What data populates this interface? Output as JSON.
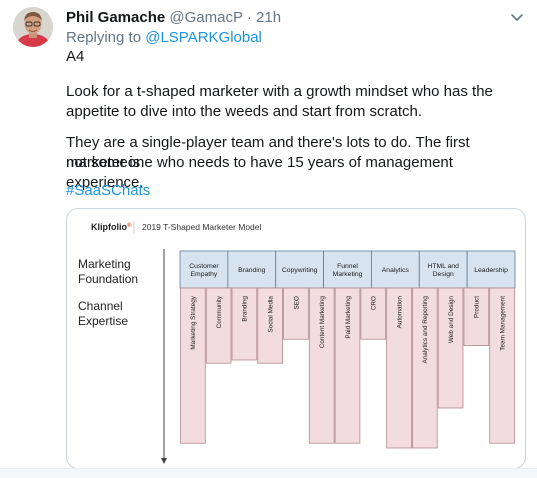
{
  "tweet": {
    "author_name": "Phil Gamache",
    "handle": "@GamacP",
    "separator": " · ",
    "time": "21h",
    "replying_prefix": "Replying to ",
    "replying_handle": "@LSPARKGlobal",
    "paragraphs": [
      "A4",
      "Look for a t-shaped marketer with a growth mindset who has the",
      "appetite to dive into the weeds and start from scratch.",
      "They are a single-player team and there's lots to do. The first marketer is",
      "not someone who needs to have 15 years of management experience."
    ],
    "hashtag": "#SaaSChats"
  },
  "image": {
    "brand": "Klipfolio",
    "brand_mark": "®",
    "title": "2019 T-Shaped Marketer Model",
    "left_labels": [
      "Marketing",
      "Foundation",
      "Channel",
      "Expertise"
    ],
    "foundation": [
      "Customer Empathy",
      "Branding",
      "Copywriting",
      "Funnel Marketing",
      "Analytics",
      "HTML and Design",
      "Leadership"
    ],
    "channels": [
      {
        "label": "Marketing Strategy",
        "level": 0.97
      },
      {
        "label": "Community",
        "level": 0.47
      },
      {
        "label": "Branding",
        "level": 0.45
      },
      {
        "label": "Social Media",
        "level": 0.47
      },
      {
        "label": "SEO",
        "level": 0.32
      },
      {
        "label": "Content Marketing",
        "level": 0.97
      },
      {
        "label": "Paid Marketing",
        "level": 0.97
      },
      {
        "label": "CRO",
        "level": 0.32
      },
      {
        "label": "Automation",
        "level": 1.0
      },
      {
        "label": "Analytics and Reporting",
        "level": 1.0
      },
      {
        "label": "Web and Design",
        "level": 0.75
      },
      {
        "label": "Product",
        "level": 0.36
      },
      {
        "label": "Team Management",
        "level": 0.97
      }
    ],
    "colors": {
      "foundation_fill": "#d7e4f0",
      "foundation_stroke": "#5c7d99",
      "channel_fill": "#f3dcdf",
      "channel_stroke": "#b08a8f"
    }
  }
}
